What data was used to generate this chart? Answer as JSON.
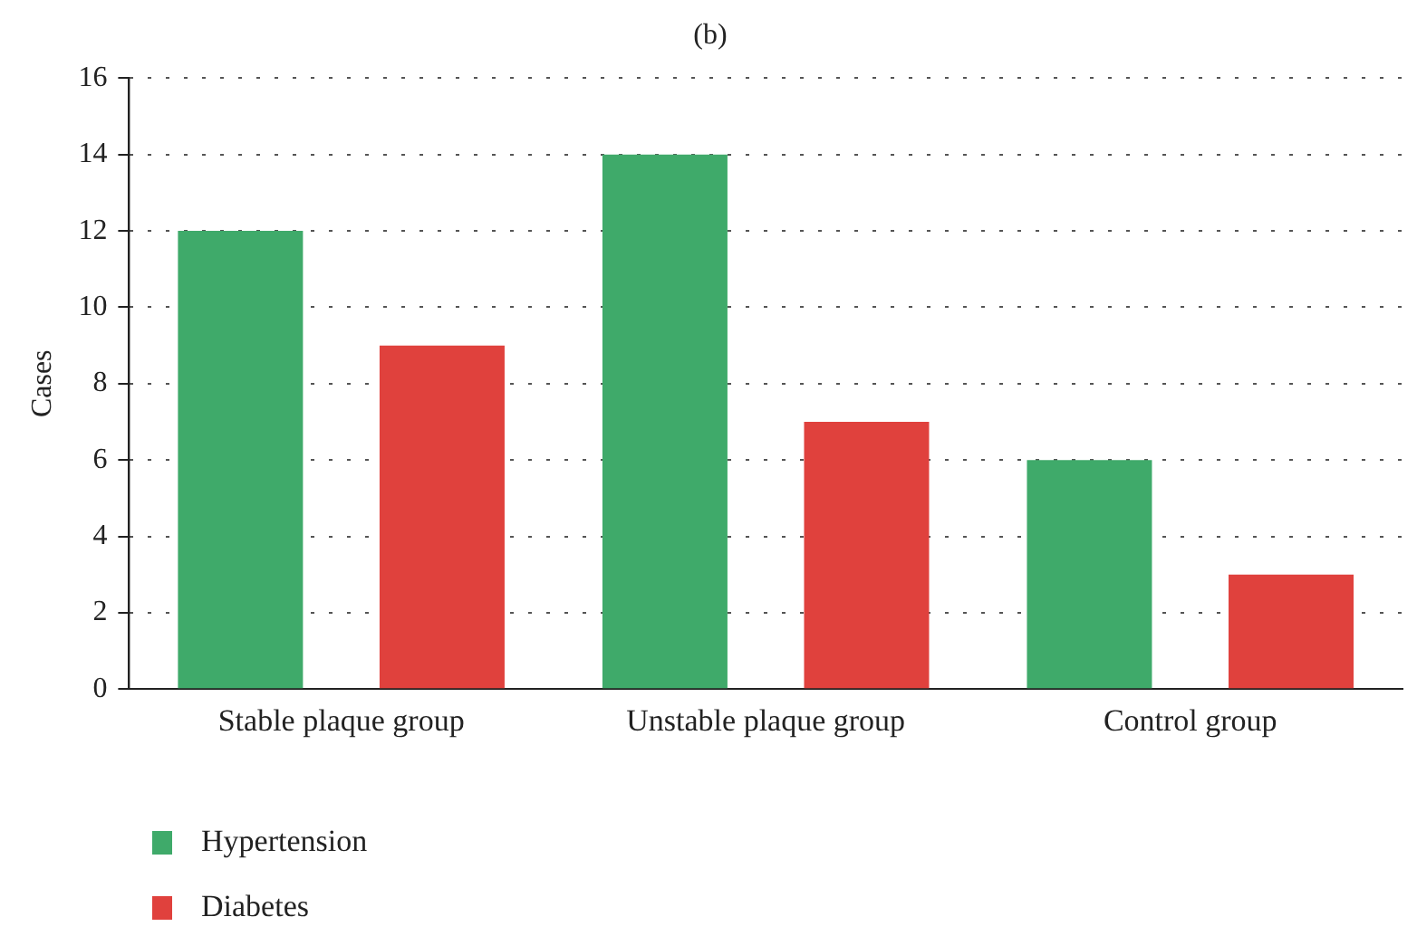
{
  "chart_data": {
    "type": "bar",
    "title": "(b)",
    "ylabel": "Cases",
    "categories": [
      "Stable plaque group",
      "Unstable plaque group",
      "Control group"
    ],
    "series": [
      {
        "name": "Hypertension",
        "color": "#3faa6a",
        "values": [
          12,
          14,
          6
        ]
      },
      {
        "name": "Diabetes",
        "color": "#e0413d",
        "values": [
          9,
          7,
          3
        ]
      }
    ],
    "ylim": [
      0,
      16
    ],
    "yticks": [
      0,
      2,
      4,
      6,
      8,
      10,
      12,
      14,
      16
    ],
    "grid": "y",
    "legend": "bottom left"
  }
}
